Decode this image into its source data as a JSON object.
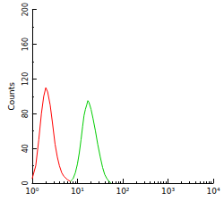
{
  "chart_data": {
    "type": "line",
    "ylabel": "Counts",
    "log": "x",
    "xlim": [
      1,
      10000
    ],
    "xticks": [
      {
        "value": 1,
        "label": "10⁰"
      },
      {
        "value": 10,
        "label": "10¹"
      },
      {
        "value": 100,
        "label": "10²"
      },
      {
        "value": 1000,
        "label": "10³"
      },
      {
        "value": 10000,
        "label": "10⁴"
      }
    ],
    "ylim": [
      0,
      200
    ],
    "yticks": [
      0,
      40,
      80,
      120,
      160,
      200
    ],
    "grid": false,
    "series": [
      {
        "color": "#ff0000",
        "x": [
          1.0,
          1.2,
          1.4,
          1.6,
          1.8,
          2.0,
          2.2,
          2.5,
          2.8,
          3.2,
          3.6,
          4.0,
          4.5,
          5.0,
          6.0,
          7.0
        ],
        "values": [
          5,
          20,
          50,
          80,
          100,
          110,
          105,
          90,
          70,
          45,
          30,
          20,
          12,
          8,
          4,
          2
        ]
      },
      {
        "color": "#00cc00",
        "x": [
          7,
          8,
          9,
          10,
          11,
          12,
          13,
          14,
          15,
          16,
          17,
          18,
          20,
          22,
          25,
          28,
          32,
          36,
          40,
          45,
          50,
          55
        ],
        "values": [
          2,
          5,
          12,
          22,
          35,
          50,
          65,
          78,
          85,
          90,
          95,
          93,
          85,
          75,
          60,
          45,
          30,
          18,
          10,
          5,
          2,
          0
        ]
      }
    ]
  }
}
